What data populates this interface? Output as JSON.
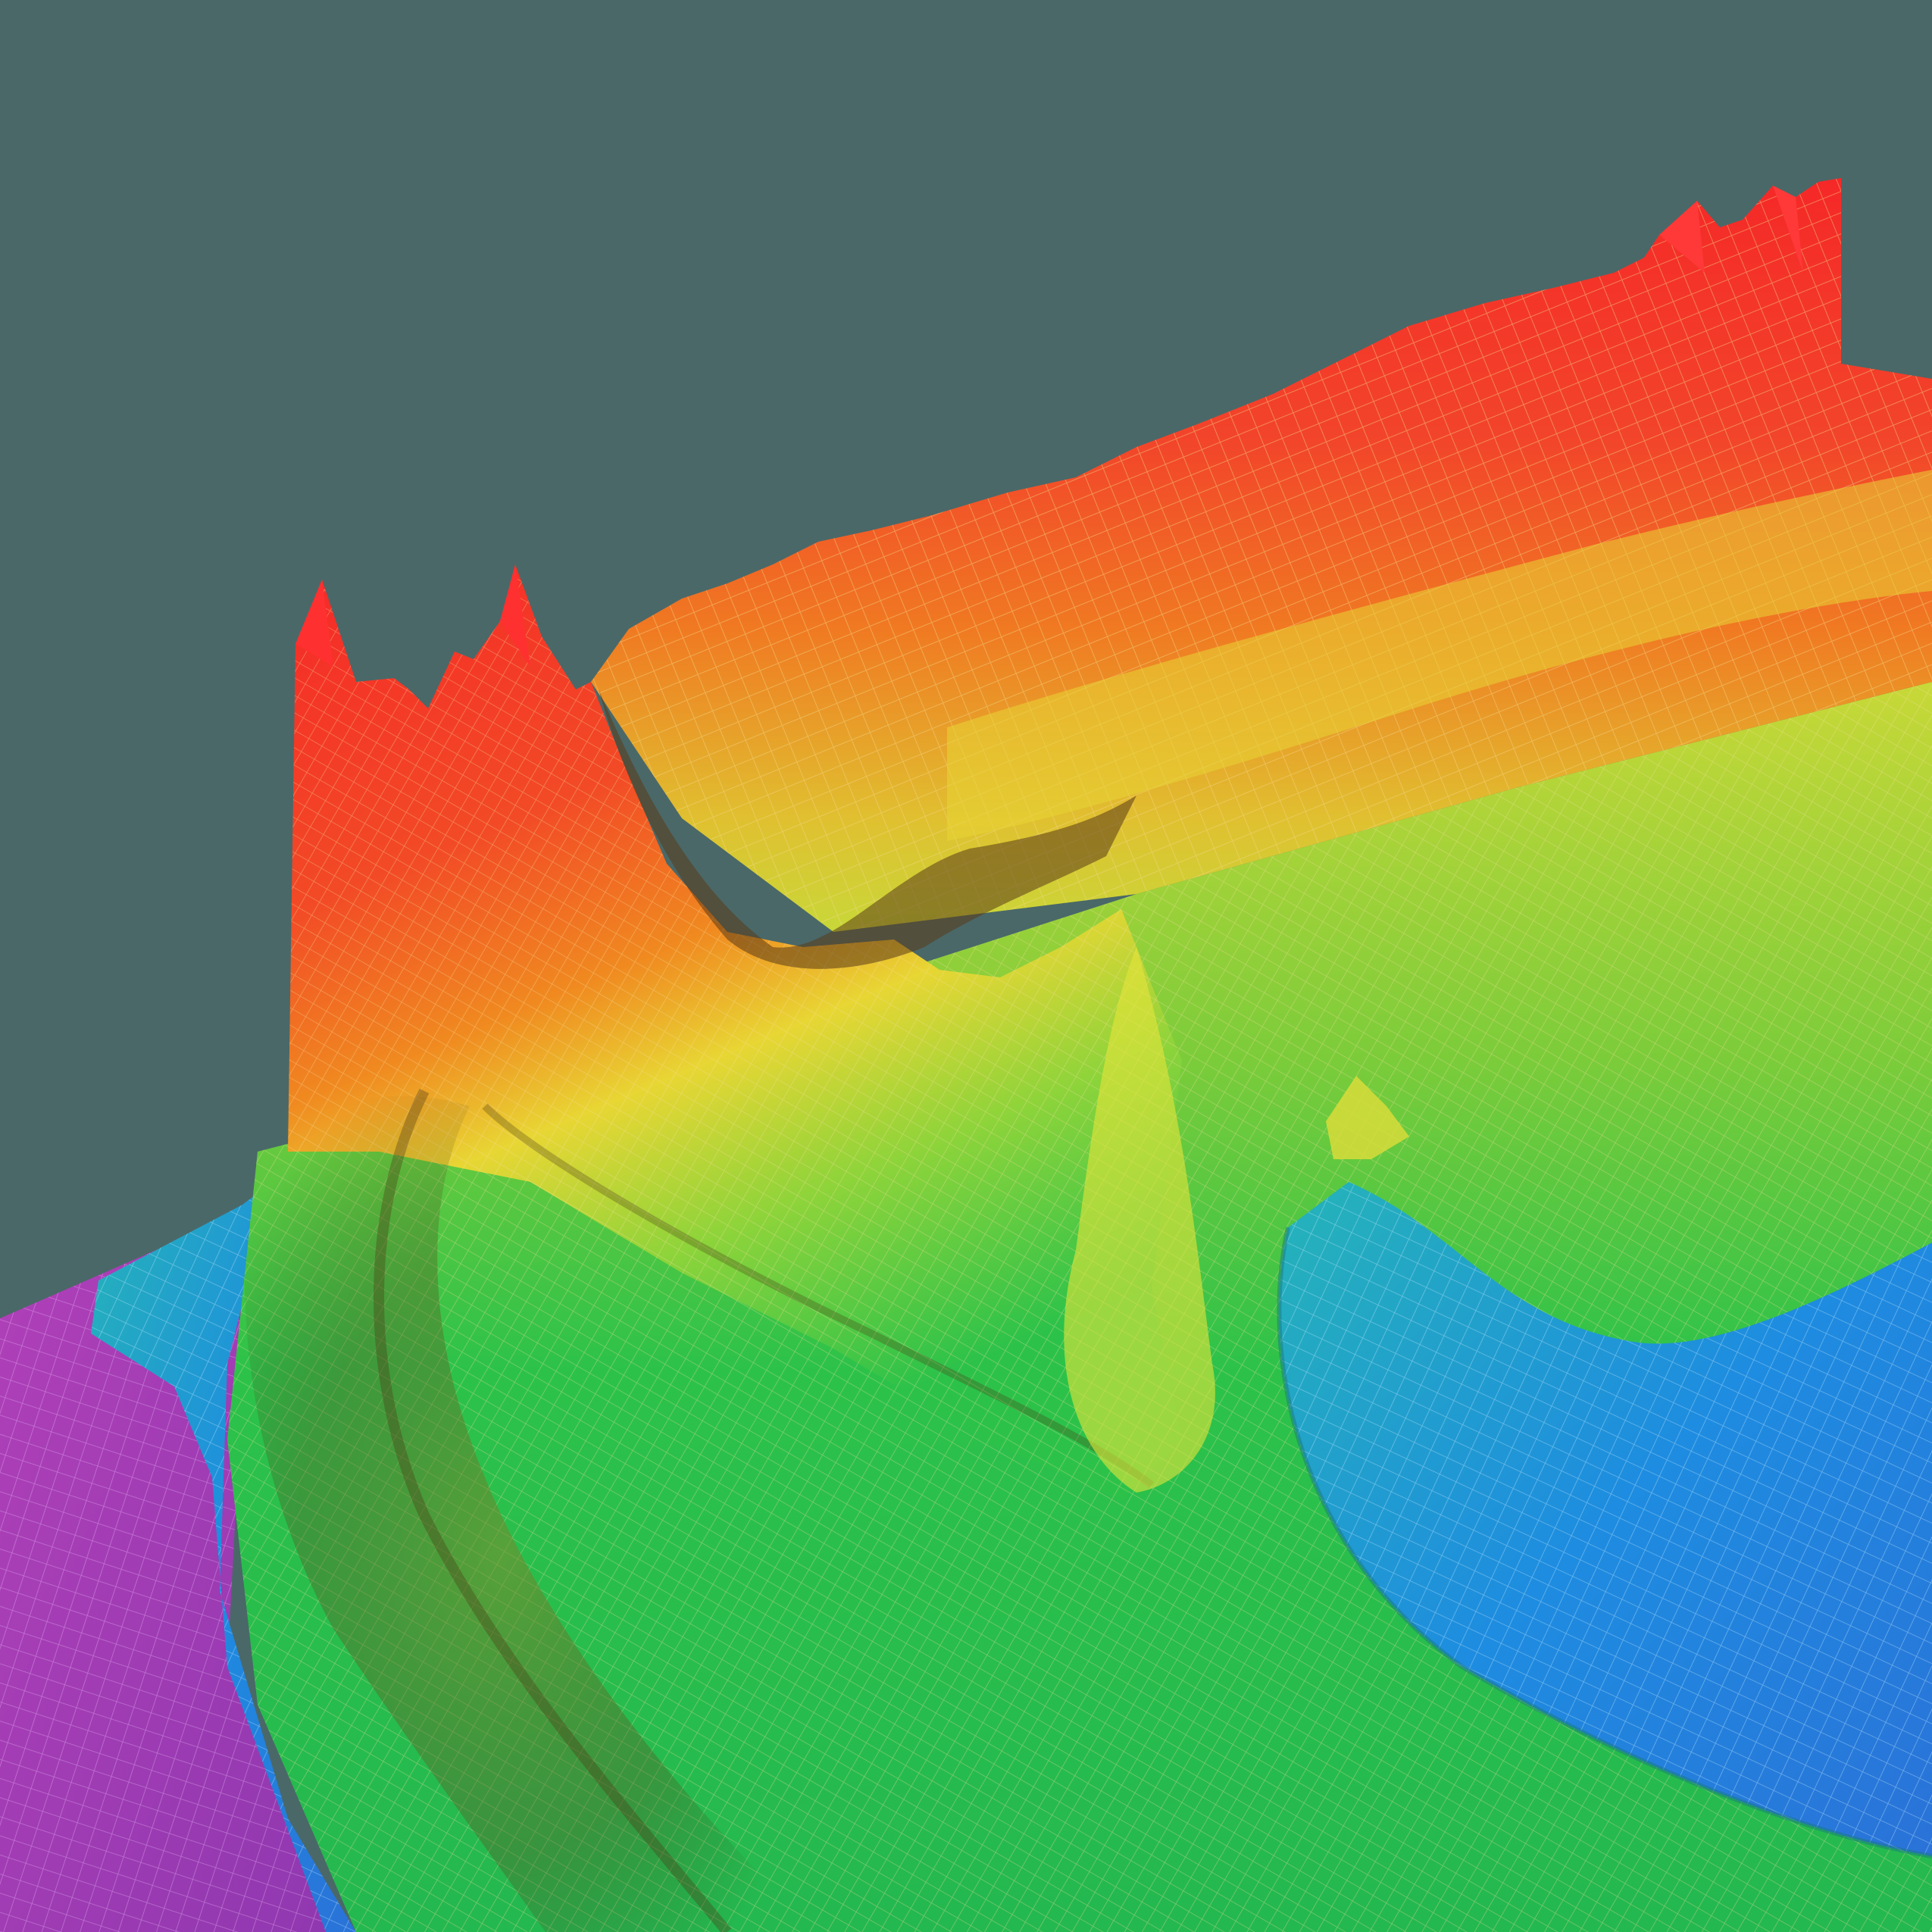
{
  "image": {
    "subject": "3d-wireframe-surface",
    "colors": {
      "background": "#4a6868",
      "peak": "#f52828",
      "high": "#f07a22",
      "mid_high": "#e6e43a",
      "mid": "#2cc24a",
      "low": "#1e8ce0",
      "lowest": "#a840b8",
      "grid_line": "#f4d98a"
    }
  }
}
